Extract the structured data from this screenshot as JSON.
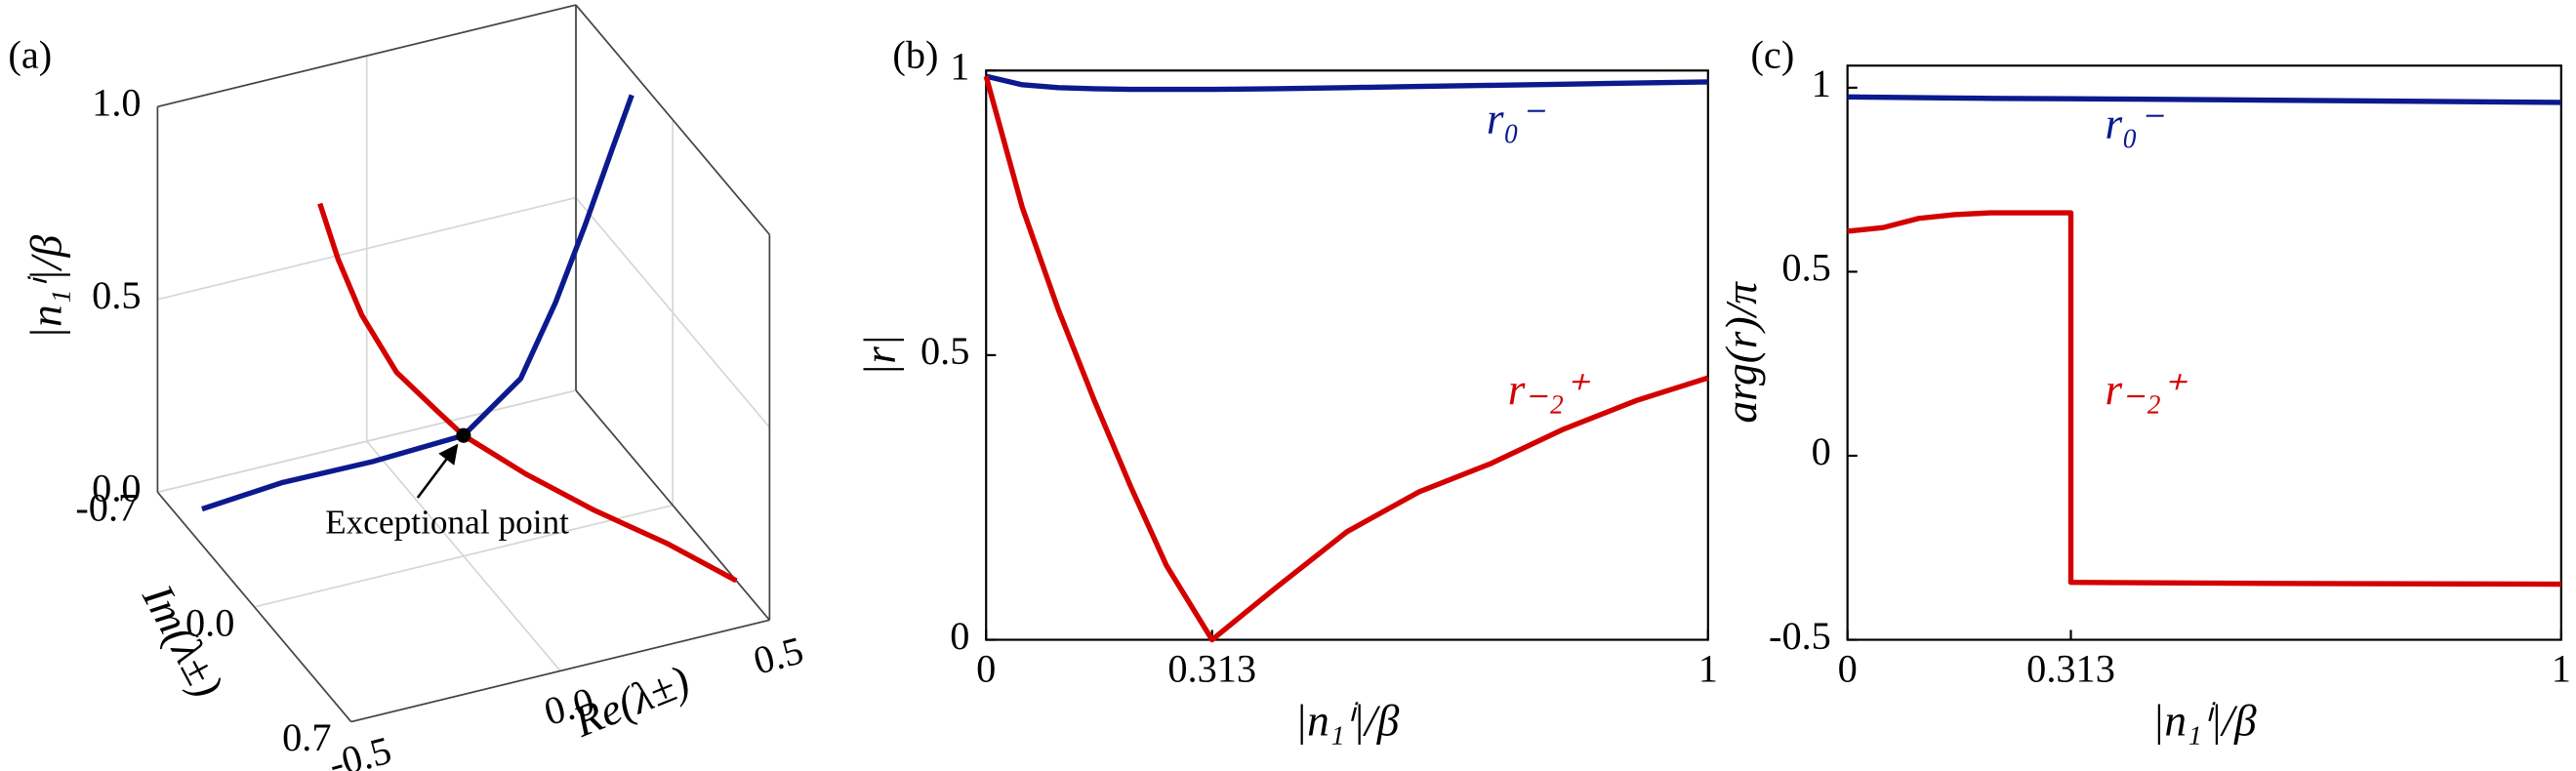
{
  "chart_data": [
    {
      "type": "line3d",
      "panel_label": "(a)",
      "xlabel": "Re(λ±)",
      "ylabel": "Im(λ±)",
      "zlabel": "|n₁ⁱ|/β",
      "xlim": [
        -0.5,
        0.5
      ],
      "ylim": [
        -0.7,
        0.7
      ],
      "zlim": [
        0,
        1
      ],
      "xticks": [
        -0.5,
        {
          "value": 0,
          "label": "0.0"
        },
        0.5
      ],
      "yticks": [
        -0.7,
        {
          "value": 0,
          "label": "0.0"
        },
        0.7
      ],
      "zticks": [
        {
          "value": 0,
          "label": "0.0"
        },
        0.5,
        {
          "value": 1,
          "label": "1.0"
        }
      ],
      "grid": true,
      "annotation": "Exceptional point",
      "series": [
        {
          "color": "#0b1a8e",
          "x": [
            -0.44,
            -0.3,
            -0.15,
            0,
            0.12,
            0.22,
            0.31,
            0.4,
            0.46
          ],
          "y": [
            -0.56,
            -0.4,
            -0.2,
            0,
            0.05,
            0,
            -0.06,
            -0.13,
            -0.175
          ],
          "z": [
            0,
            0.1,
            0.2,
            0.313,
            0.45,
            0.6,
            0.75,
            0.9,
            1
          ]
        },
        {
          "color": "#d40000",
          "x": [
            -0.34,
            -0.3,
            -0.25,
            -0.18,
            -0.08,
            0,
            0.1,
            0.22,
            0.36,
            0.5
          ],
          "y": [
            -0.01,
            0,
            0.02,
            0.06,
            0.06,
            0,
            0.15,
            0.28,
            0.38,
            0.46
          ],
          "z": [
            1,
            0.85,
            0.7,
            0.55,
            0.42,
            0.313,
            0.25,
            0.18,
            0.1,
            0
          ]
        }
      ]
    },
    {
      "type": "line",
      "panel_label": "(b)",
      "xlabel": "|n₁ⁱ|/β",
      "ylabel": "|r|",
      "xlim": [
        0,
        1
      ],
      "ylim": [
        0,
        1
      ],
      "xticks": [
        0,
        0.313,
        1
      ],
      "yticks": [
        0,
        0.5,
        1
      ],
      "x": [
        0,
        0.05,
        0.1,
        0.15,
        0.2,
        0.25,
        0.313,
        0.4,
        0.5,
        0.6,
        0.7,
        0.8,
        0.9,
        1
      ],
      "series": [
        {
          "name": "r₀⁻",
          "color": "#0b1a8e",
          "values": [
            0.99,
            0.975,
            0.97,
            0.968,
            0.967,
            0.967,
            0.967,
            0.968,
            0.97,
            0.972,
            0.974,
            0.976,
            0.978,
            0.98
          ]
        },
        {
          "name": "r₋₂⁺",
          "color": "#d40000",
          "values": [
            0.99,
            0.76,
            0.58,
            0.42,
            0.27,
            0.13,
            0,
            0.09,
            0.19,
            0.26,
            0.31,
            0.37,
            0.42,
            0.46
          ]
        }
      ]
    },
    {
      "type": "line",
      "panel_label": "(c)",
      "xlabel": "|n₁ⁱ|/β",
      "ylabel": "arg(r)/π",
      "xlim": [
        0,
        1
      ],
      "ylim": [
        -0.5,
        1.06
      ],
      "xticks": [
        0,
        0.313,
        1
      ],
      "yticks": [
        -0.5,
        0,
        0.5,
        1
      ],
      "x": [
        0,
        0.05,
        0.1,
        0.15,
        0.2,
        0.313,
        0.313,
        0.4,
        0.6,
        0.8,
        1
      ],
      "series": [
        {
          "name": "r₀⁻",
          "color": "#0b1a8e",
          "values": [
            0.975,
            0.974,
            0.973,
            0.972,
            0.971,
            0.97,
            0.97,
            0.969,
            0.966,
            0.963,
            0.96
          ]
        },
        {
          "name": "r₋₂⁺",
          "color": "#d40000",
          "values": [
            0.61,
            0.62,
            0.645,
            0.655,
            0.66,
            0.66,
            -0.344,
            -0.345,
            -0.347,
            -0.348,
            -0.349
          ]
        }
      ]
    }
  ]
}
